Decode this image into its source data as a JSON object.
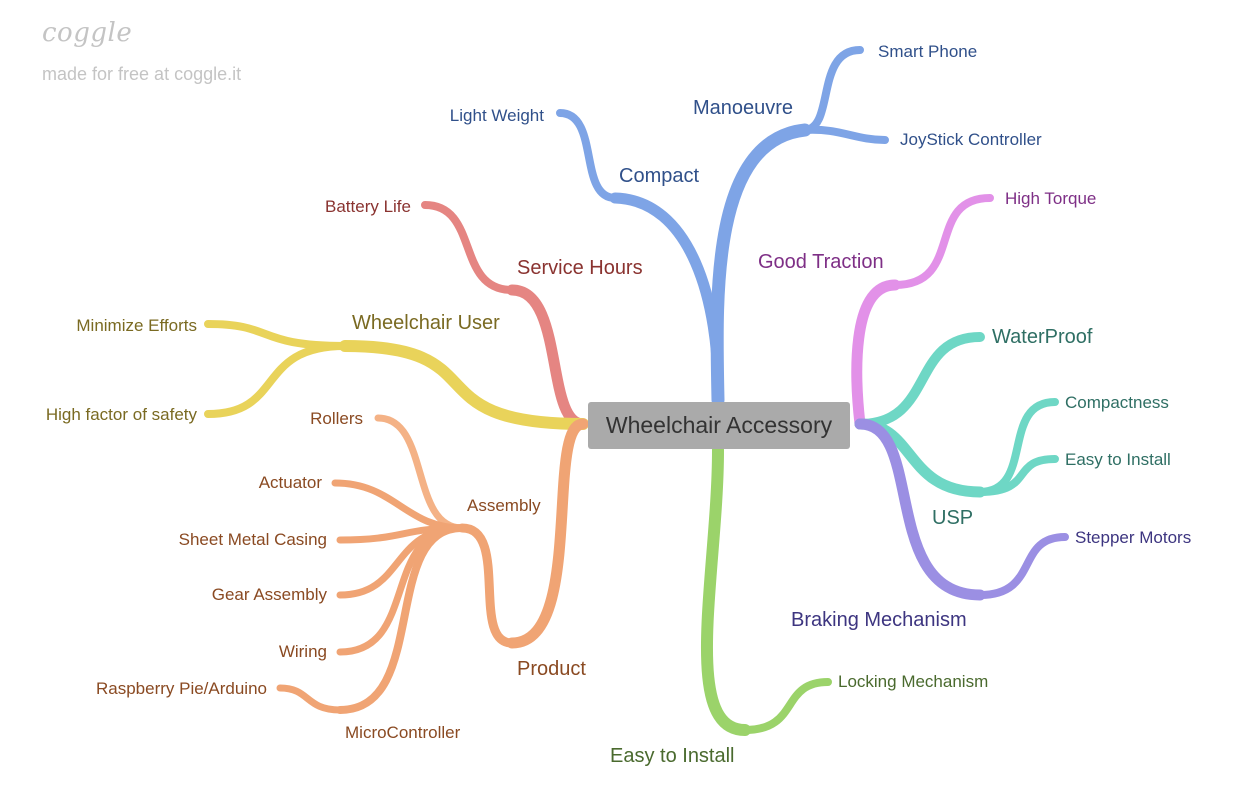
{
  "brand": {
    "logo": "coggle",
    "tagline": "made for free at coggle.it"
  },
  "root": "Wheelchair Accessory",
  "colors": {
    "manoeuvre": "#7ea4e6",
    "service": "#e58582",
    "user": "#e9d35a",
    "product": "#f0a474",
    "traction": "#e291e8",
    "usp": "#6ed7c5",
    "braking": "#9b8fe3",
    "install": "#9bd36a"
  },
  "branches": {
    "manoeuvre": {
      "label": "Manoeuvre",
      "children": [
        "Smart Phone",
        "JoyStick Controller"
      ]
    },
    "compact": {
      "label": "Compact",
      "children": [
        "Light Weight"
      ]
    },
    "service_hours": {
      "label": "Service Hours",
      "children": [
        "Battery Life"
      ]
    },
    "wheelchair_user": {
      "label": "Wheelchair User",
      "children": [
        "Minimize Efforts",
        "High factor of safety"
      ]
    },
    "product": {
      "label": "Product"
    },
    "assembly": {
      "label": "Assembly",
      "children": [
        "Rollers",
        "Actuator",
        "Sheet Metal Casing",
        "Gear Assembly",
        "Wiring"
      ]
    },
    "microcontroller": {
      "label": "MicroController",
      "children": [
        "Raspberry Pie/Arduino"
      ]
    },
    "good_traction": {
      "label": "Good Traction",
      "children": [
        "High Torque"
      ]
    },
    "usp": {
      "label": "USP",
      "children": [
        "WaterProof",
        "Compactness",
        "Easy to Install"
      ]
    },
    "braking": {
      "label": "Braking Mechanism",
      "children": [
        "Stepper Motors"
      ]
    },
    "easy_install": {
      "label": "Easy to Install",
      "children": [
        "Locking Mechanism"
      ]
    }
  }
}
